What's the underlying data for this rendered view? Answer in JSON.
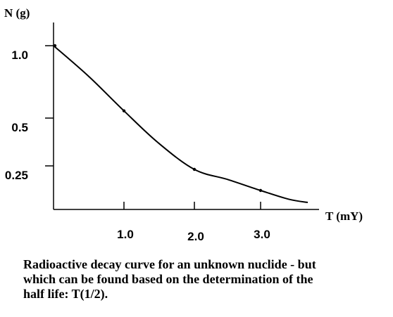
{
  "chart_data": {
    "type": "line",
    "title": "",
    "xlabel": "T (mY)",
    "ylabel": "N (g)",
    "xlim": [
      0,
      3.8
    ],
    "ylim": [
      0,
      1.15
    ],
    "x_ticks": [
      1.0,
      2.0,
      3.0
    ],
    "x_tick_labels": [
      "1.0",
      "2.0",
      "3.0"
    ],
    "y_ticks": [
      1.0,
      0.5,
      0.25
    ],
    "y_tick_labels": [
      "1.0",
      "0.5",
      "0.25"
    ],
    "grid": false,
    "legend": "none",
    "series": [
      {
        "color": "#000000",
        "x": [
          0.0,
          0.5,
          1.0,
          1.5,
          2.0,
          2.5,
          3.0,
          3.4,
          3.6
        ],
        "y": [
          1.0,
          0.79,
          0.55,
          0.38,
          0.25,
          0.19,
          0.125,
          0.07,
          0.05
        ]
      }
    ],
    "marked_points": [
      {
        "x": 0.0,
        "y": 1.0
      },
      {
        "x": 1.0,
        "y": 0.55
      },
      {
        "x": 2.0,
        "y": 0.25
      },
      {
        "x": 3.0,
        "y": 0.125
      }
    ]
  },
  "caption": {
    "line1": "Radioactive decay curve for an unknown nuclide - but",
    "line2": "which can be found based on the determination of the",
    "line3": "half life: T(1/2)."
  }
}
